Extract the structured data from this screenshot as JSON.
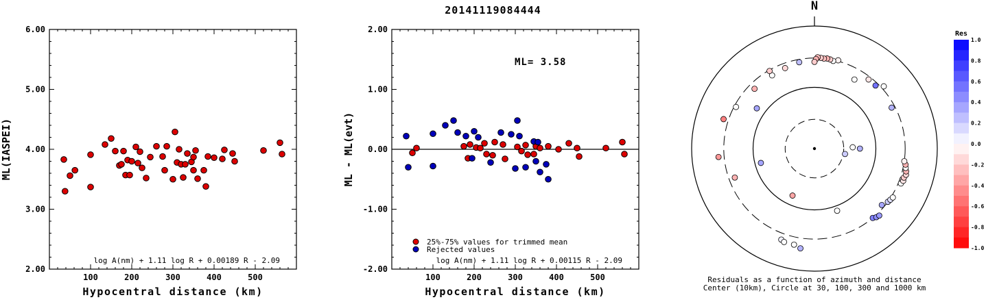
{
  "title": "20141119084444",
  "chart_data": [
    {
      "type": "scatter",
      "name": "left",
      "xlabel": "Hypocentral distance (km)",
      "ylabel": "ML(IASPEI)",
      "xlim": [
        0,
        600
      ],
      "ylim": [
        2.0,
        6.0
      ],
      "xticks": [
        "100",
        "200",
        "300",
        "400",
        "500"
      ],
      "yticks": [
        "2.00",
        "3.00",
        "4.00",
        "5.00",
        "6.00"
      ],
      "formula": "log A(nm) + 1.11 log R + 0.00189 R - 2.09",
      "points": [
        [
          35,
          3.83
        ],
        [
          38,
          3.3
        ],
        [
          50,
          3.56
        ],
        [
          62,
          3.65
        ],
        [
          100,
          3.91
        ],
        [
          100,
          3.37
        ],
        [
          135,
          4.08
        ],
        [
          150,
          4.18
        ],
        [
          160,
          3.97
        ],
        [
          170,
          3.73
        ],
        [
          175,
          3.75
        ],
        [
          180,
          3.97
        ],
        [
          185,
          3.57
        ],
        [
          190,
          3.82
        ],
        [
          195,
          3.57
        ],
        [
          200,
          3.8
        ],
        [
          210,
          4.04
        ],
        [
          215,
          3.77
        ],
        [
          220,
          3.96
        ],
        [
          225,
          3.69
        ],
        [
          235,
          3.52
        ],
        [
          245,
          3.87
        ],
        [
          260,
          4.05
        ],
        [
          275,
          3.88
        ],
        [
          280,
          3.65
        ],
        [
          285,
          4.05
        ],
        [
          300,
          3.5
        ],
        [
          305,
          4.29
        ],
        [
          310,
          3.78
        ],
        [
          315,
          4.0
        ],
        [
          320,
          3.75
        ],
        [
          325,
          3.53
        ],
        [
          330,
          3.75
        ],
        [
          335,
          3.93
        ],
        [
          345,
          3.79
        ],
        [
          350,
          3.87
        ],
        [
          350,
          3.65
        ],
        [
          355,
          3.98
        ],
        [
          360,
          3.51
        ],
        [
          375,
          3.65
        ],
        [
          380,
          3.38
        ],
        [
          385,
          3.88
        ],
        [
          400,
          3.86
        ],
        [
          420,
          3.84
        ],
        [
          425,
          3.99
        ],
        [
          445,
          3.93
        ],
        [
          450,
          3.8
        ],
        [
          520,
          3.98
        ],
        [
          560,
          4.11
        ],
        [
          565,
          3.92
        ]
      ]
    },
    {
      "type": "scatter",
      "name": "middle",
      "xlabel": "Hypocentral distance (km)",
      "ylabel": "ML - ML(evt)",
      "xlim": [
        0,
        600
      ],
      "ylim": [
        -2.0,
        2.0
      ],
      "xticks": [
        "100",
        "200",
        "300",
        "400",
        "500"
      ],
      "yticks": [
        "-2.00",
        "-1.00",
        "0.00",
        "1.00",
        "2.00"
      ],
      "ml_label": "ML= 3.58",
      "formula": "log A(nm) + 1.11 log R + 0.00115 R - 2.09",
      "legend": [
        {
          "label": "25%-75% values for trimmed mean",
          "color": "#dd0000"
        },
        {
          "label": "Rejected values",
          "color": "#0000bb"
        }
      ],
      "series": [
        {
          "color": "#dd0000",
          "points": [
            [
              60,
              0.02
            ],
            [
              175,
              0.05
            ],
            [
              190,
              0.08
            ],
            [
              205,
              0.03
            ],
            [
              215,
              0.02
            ],
            [
              225,
              0.1
            ],
            [
              250,
              0.12
            ],
            [
              270,
              0.08
            ],
            [
              305,
              0.04
            ],
            [
              315,
              -0.03
            ],
            [
              325,
              0.07
            ],
            [
              330,
              -0.09
            ],
            [
              345,
              -0.08
            ],
            [
              350,
              0.05
            ],
            [
              360,
              0.02
            ],
            [
              380,
              0.05
            ],
            [
              405,
              0.0
            ],
            [
              430,
              0.1
            ],
            [
              450,
              0.02
            ],
            [
              455,
              -0.12
            ],
            [
              520,
              0.02
            ],
            [
              560,
              0.12
            ],
            [
              565,
              -0.08
            ],
            [
              185,
              -0.15
            ],
            [
              230,
              -0.08
            ],
            [
              245,
              -0.1
            ],
            [
              275,
              -0.16
            ],
            [
              50,
              -0.06
            ]
          ]
        },
        {
          "color": "#0000bb",
          "points": [
            [
              35,
              0.22
            ],
            [
              40,
              -0.3
            ],
            [
              100,
              0.26
            ],
            [
              100,
              -0.28
            ],
            [
              130,
              0.4
            ],
            [
              150,
              0.48
            ],
            [
              160,
              0.28
            ],
            [
              180,
              0.22
            ],
            [
              200,
              0.3
            ],
            [
              210,
              0.2
            ],
            [
              240,
              -0.22
            ],
            [
              265,
              0.28
            ],
            [
              290,
              0.25
            ],
            [
              300,
              -0.32
            ],
            [
              305,
              0.48
            ],
            [
              310,
              0.22
            ],
            [
              325,
              -0.3
            ],
            [
              345,
              0.13
            ],
            [
              350,
              -0.2
            ],
            [
              355,
              0.12
            ],
            [
              360,
              -0.38
            ],
            [
              375,
              -0.25
            ],
            [
              380,
              -0.5
            ],
            [
              195,
              -0.15
            ]
          ]
        }
      ]
    },
    {
      "type": "polar-scatter",
      "name": "azimuth",
      "north_label": "N",
      "caption_line1": "Residuals as a function of azimuth and distance",
      "caption_line2": "Center (10km), Circle at 30, 100, 300 and 1000 km",
      "colorbar_title": "Res",
      "colorbar_ticks": [
        "1.0",
        "0.8",
        "0.6",
        "0.4",
        "0.2",
        "0.0",
        "-0.2",
        "-0.4",
        "-0.6",
        "-0.8",
        "-1.0"
      ],
      "points": [
        {
          "az": 15,
          "dist": 310,
          "res": -0.05
        },
        {
          "az": 12,
          "dist": 290,
          "res": 0.0
        },
        {
          "az": 10,
          "dist": 300,
          "res": -0.2
        },
        {
          "az": 8,
          "dist": 305,
          "res": -0.3
        },
        {
          "az": 6,
          "dist": 300,
          "res": -0.25
        },
        {
          "az": 4,
          "dist": 305,
          "res": -0.2
        },
        {
          "az": 2,
          "dist": 310,
          "res": -0.25
        },
        {
          "az": 1,
          "dist": 290,
          "res": -0.3
        },
        {
          "az": 0,
          "dist": 260,
          "res": -0.2
        },
        {
          "az": -10,
          "dist": 270,
          "res": 0.25
        },
        {
          "az": -20,
          "dist": 250,
          "res": -0.15
        },
        {
          "az": -30,
          "dist": 240,
          "res": 0.0
        },
        {
          "az": -45,
          "dist": 240,
          "res": -0.3
        },
        {
          "az": -62,
          "dist": 280,
          "res": 0.0
        },
        {
          "az": -72,
          "dist": 360,
          "res": -0.5
        },
        {
          "az": -95,
          "dist": 370,
          "res": -0.4
        },
        {
          "az": -110,
          "dist": 240,
          "res": -0.3
        },
        {
          "az": -105,
          "dist": 80,
          "res": 0.35
        },
        {
          "az": -155,
          "dist": 70,
          "res": -0.35
        },
        {
          "az": -160,
          "dist": 380,
          "res": 0.05
        },
        {
          "az": -168,
          "dist": 400,
          "res": 0.0
        },
        {
          "az": -172,
          "dist": 440,
          "res": 0.3
        },
        {
          "az": -162,
          "dist": 400,
          "res": 0.0
        },
        {
          "az": 160,
          "dist": 120,
          "res": 0.0
        },
        {
          "az": 140,
          "dist": 300,
          "res": 0.5
        },
        {
          "az": 138,
          "dist": 320,
          "res": 0.45
        },
        {
          "az": 136,
          "dist": 330,
          "res": 0.4
        },
        {
          "az": 130,
          "dist": 270,
          "res": 0.35
        },
        {
          "az": 126,
          "dist": 300,
          "res": 0.2
        },
        {
          "az": 124,
          "dist": 310,
          "res": 0.1
        },
        {
          "az": 122,
          "dist": 320,
          "res": 0.0
        },
        {
          "az": 112,
          "dist": 330,
          "res": 0.0
        },
        {
          "az": 110,
          "dist": 345,
          "res": -0.1
        },
        {
          "az": 108,
          "dist": 340,
          "res": -0.2
        },
        {
          "az": 106,
          "dist": 355,
          "res": -0.15
        },
        {
          "az": 104,
          "dist": 345,
          "res": -0.3
        },
        {
          "az": 102,
          "dist": 330,
          "res": 0.0
        },
        {
          "az": 100,
          "dist": 320,
          "res": -0.3
        },
        {
          "az": 98,
          "dist": 300,
          "res": -0.05
        },
        {
          "az": 90,
          "dist": 55,
          "res": 0.3
        },
        {
          "az": 88,
          "dist": 42,
          "res": 0.0
        },
        {
          "az": 100,
          "dist": 32,
          "res": 0.2
        },
        {
          "az": 62,
          "dist": 265,
          "res": 0.3
        },
        {
          "az": 44,
          "dist": 270,
          "res": 0.55
        },
        {
          "az": 38,
          "dist": 270,
          "res": -0.1
        },
        {
          "az": 30,
          "dist": 200,
          "res": 0.0
        },
        {
          "az": 48,
          "dist": 330,
          "res": 0.0
        },
        {
          "az": -55,
          "dist": 140,
          "res": 0.35
        },
        {
          "az": -30,
          "dist": 290,
          "res": -0.2
        }
      ]
    }
  ]
}
